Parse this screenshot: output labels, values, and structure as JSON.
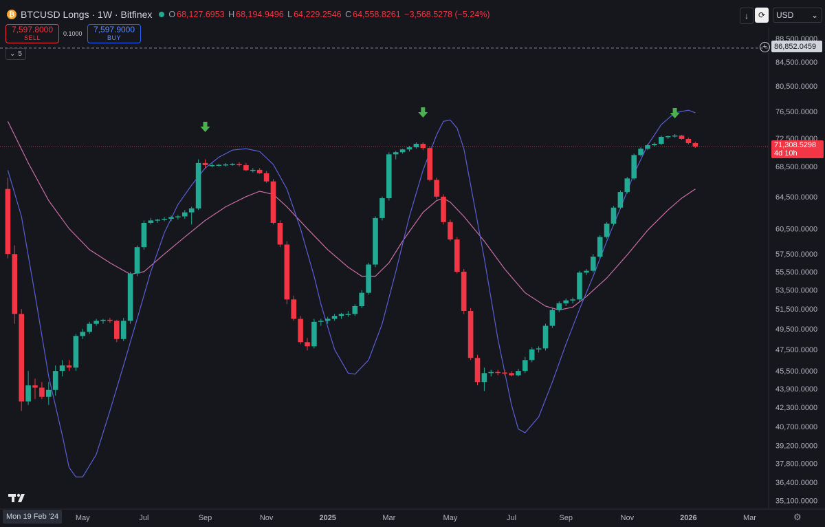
{
  "header": {
    "logo_symbol": "₿",
    "symbol_title": "BTCUSD Longs · 1W · Bitfinex",
    "status_icon": "market-status-dot",
    "open_label": "O",
    "open": "68,127.6953",
    "high_label": "H",
    "high": "68,194.9496",
    "low_label": "L",
    "low": "64,229.2546",
    "close_label": "C",
    "close": "64,558.8261",
    "change": "−3,568.5278 (−5.24%)"
  },
  "trade": {
    "sell_price": "7,597.8000",
    "sell_label": "SELL",
    "spread": "0.1000",
    "buy_price": "7,597.9000",
    "buy_label": "BUY"
  },
  "indicator_badge": {
    "count": "5",
    "icon": "chevron-down-icon"
  },
  "toolbar": {
    "download_icon": "arrow-down-icon",
    "sync_icon": "sync-icon",
    "currency": "USD",
    "currency_icon": "chevron-down-icon"
  },
  "price_tag": {
    "price": "71,308.5298",
    "countdown": "4d 10h"
  },
  "crosshair": {
    "price": "86,852.0459",
    "icon": "plus-icon"
  },
  "bottom": {
    "current_date": "Mon 19 Feb '24",
    "settings_icon": "gear-icon"
  },
  "colors": {
    "background": "#16171c",
    "up": "#22ab94",
    "down": "#f23645",
    "cycle_line": "#5b5fd6",
    "ma_line": "#c96fa8",
    "arrow": "#4caf50",
    "axis_text": "#b2b5be"
  },
  "chart_data": {
    "type": "candlestick",
    "title": "BTCUSD Longs · 1W · Bitfinex",
    "y_axis": {
      "scale": "log",
      "ticks": [
        "88,500.0000",
        "84,500.0000",
        "80,500.0000",
        "76,500.0000",
        "72,500.0000",
        "68,500.0000",
        "64,500.0000",
        "60,500.0000",
        "57,500.0000",
        "55,500.0000",
        "53,500.0000",
        "51,500.0000",
        "49,500.0000",
        "47,500.0000",
        "45,500.0000",
        "43,900.0000",
        "42,300.0000",
        "40,700.0000",
        "39,200.0000",
        "37,800.0000",
        "36,400.0000",
        "35,100.0000"
      ],
      "range": [
        34500,
        90500
      ]
    },
    "x_axis": {
      "ticks": [
        {
          "label": "May",
          "week": 11
        },
        {
          "label": "Jul",
          "week": 20
        },
        {
          "label": "Sep",
          "week": 29
        },
        {
          "label": "Nov",
          "week": 38
        },
        {
          "label": "2025",
          "week": 47,
          "bold": true
        },
        {
          "label": "Mar",
          "week": 56
        },
        {
          "label": "May",
          "week": 65
        },
        {
          "label": "Jul",
          "week": 74
        },
        {
          "label": "Sep",
          "week": 82
        },
        {
          "label": "Nov",
          "week": 91
        },
        {
          "label": "2026",
          "week": 100,
          "bold": true
        },
        {
          "label": "Mar",
          "week": 109
        }
      ]
    },
    "candles": [
      {
        "o": 65500,
        "h": 67000,
        "l": 57000,
        "c": 57500
      },
      {
        "o": 57500,
        "h": 58500,
        "l": 50000,
        "c": 51000
      },
      {
        "o": 51000,
        "h": 51500,
        "l": 42000,
        "c": 42800
      },
      {
        "o": 42800,
        "h": 45500,
        "l": 42500,
        "c": 44200
      },
      {
        "o": 44200,
        "h": 44800,
        "l": 43000,
        "c": 44000
      },
      {
        "o": 44000,
        "h": 44500,
        "l": 43000,
        "c": 43200
      },
      {
        "o": 43200,
        "h": 44500,
        "l": 42500,
        "c": 43800
      },
      {
        "o": 43800,
        "h": 46000,
        "l": 43300,
        "c": 45500
      },
      {
        "o": 45500,
        "h": 46500,
        "l": 45000,
        "c": 46000
      },
      {
        "o": 46000,
        "h": 46500,
        "l": 45500,
        "c": 45800
      },
      {
        "o": 45800,
        "h": 49000,
        "l": 45500,
        "c": 48800
      },
      {
        "o": 48800,
        "h": 49500,
        "l": 48500,
        "c": 49200
      },
      {
        "o": 49200,
        "h": 50200,
        "l": 49000,
        "c": 50000
      },
      {
        "o": 50000,
        "h": 50500,
        "l": 49800,
        "c": 50300
      },
      {
        "o": 50300,
        "h": 50500,
        "l": 50000,
        "c": 50400
      },
      {
        "o": 50400,
        "h": 50600,
        "l": 50100,
        "c": 50300
      },
      {
        "o": 50300,
        "h": 50400,
        "l": 48200,
        "c": 48500
      },
      {
        "o": 48500,
        "h": 50600,
        "l": 48300,
        "c": 50300
      },
      {
        "o": 50300,
        "h": 55500,
        "l": 50000,
        "c": 55300
      },
      {
        "o": 55300,
        "h": 58500,
        "l": 55000,
        "c": 58300
      },
      {
        "o": 58300,
        "h": 61500,
        "l": 58000,
        "c": 61200
      },
      {
        "o": 61200,
        "h": 61800,
        "l": 61000,
        "c": 61500
      },
      {
        "o": 61500,
        "h": 61700,
        "l": 61200,
        "c": 61600
      },
      {
        "o": 61600,
        "h": 61900,
        "l": 61400,
        "c": 61700
      },
      {
        "o": 61700,
        "h": 62100,
        "l": 61400,
        "c": 61900
      },
      {
        "o": 61900,
        "h": 62200,
        "l": 61600,
        "c": 62000
      },
      {
        "o": 62000,
        "h": 62800,
        "l": 61700,
        "c": 62500
      },
      {
        "o": 62500,
        "h": 63200,
        "l": 61000,
        "c": 63000
      },
      {
        "o": 63000,
        "h": 69500,
        "l": 62800,
        "c": 69000
      },
      {
        "o": 69000,
        "h": 69500,
        "l": 68300,
        "c": 68700
      },
      {
        "o": 68700,
        "h": 69000,
        "l": 68400,
        "c": 68700
      },
      {
        "o": 68700,
        "h": 68900,
        "l": 68500,
        "c": 68750
      },
      {
        "o": 68750,
        "h": 69000,
        "l": 68500,
        "c": 68800
      },
      {
        "o": 68800,
        "h": 69000,
        "l": 68600,
        "c": 68850
      },
      {
        "o": 68850,
        "h": 69100,
        "l": 68500,
        "c": 68700
      },
      {
        "o": 68700,
        "h": 69000,
        "l": 67900,
        "c": 68000
      },
      {
        "o": 68000,
        "h": 68300,
        "l": 67700,
        "c": 68050
      },
      {
        "o": 68050,
        "h": 68300,
        "l": 67500,
        "c": 67600
      },
      {
        "o": 67600,
        "h": 67900,
        "l": 66300,
        "c": 66500
      },
      {
        "o": 66500,
        "h": 66800,
        "l": 61000,
        "c": 61200
      },
      {
        "o": 61200,
        "h": 61500,
        "l": 58300,
        "c": 58600
      },
      {
        "o": 58600,
        "h": 59000,
        "l": 52000,
        "c": 52500
      },
      {
        "o": 52500,
        "h": 52900,
        "l": 50300,
        "c": 50500
      },
      {
        "o": 50500,
        "h": 50800,
        "l": 48000,
        "c": 48200
      },
      {
        "o": 48200,
        "h": 48600,
        "l": 47400,
        "c": 47800
      },
      {
        "o": 47800,
        "h": 50500,
        "l": 47600,
        "c": 50200
      },
      {
        "o": 50200,
        "h": 50500,
        "l": 49800,
        "c": 50300
      },
      {
        "o": 50300,
        "h": 50700,
        "l": 50000,
        "c": 50500
      },
      {
        "o": 50500,
        "h": 51000,
        "l": 50300,
        "c": 50800
      },
      {
        "o": 50800,
        "h": 51100,
        "l": 50500,
        "c": 51000
      },
      {
        "o": 51000,
        "h": 51300,
        "l": 50700,
        "c": 51000
      },
      {
        "o": 51000,
        "h": 52000,
        "l": 50800,
        "c": 51800
      },
      {
        "o": 51800,
        "h": 53500,
        "l": 51600,
        "c": 53200
      },
      {
        "o": 53200,
        "h": 56500,
        "l": 53000,
        "c": 56300
      },
      {
        "o": 56300,
        "h": 62000,
        "l": 56000,
        "c": 61800
      },
      {
        "o": 61800,
        "h": 64500,
        "l": 61500,
        "c": 64300
      },
      {
        "o": 64300,
        "h": 70500,
        "l": 64000,
        "c": 70200
      },
      {
        "o": 70200,
        "h": 70700,
        "l": 69500,
        "c": 70500
      },
      {
        "o": 70500,
        "h": 71000,
        "l": 70300,
        "c": 70900
      },
      {
        "o": 70900,
        "h": 71400,
        "l": 70600,
        "c": 71200
      },
      {
        "o": 71200,
        "h": 71900,
        "l": 71000,
        "c": 71700
      },
      {
        "o": 71700,
        "h": 71900,
        "l": 70800,
        "c": 71100
      },
      {
        "o": 71100,
        "h": 71300,
        "l": 66500,
        "c": 66700
      },
      {
        "o": 66700,
        "h": 67000,
        "l": 64200,
        "c": 64500
      },
      {
        "o": 64500,
        "h": 64800,
        "l": 61000,
        "c": 61300
      },
      {
        "o": 61300,
        "h": 61600,
        "l": 59000,
        "c": 59200
      },
      {
        "o": 59200,
        "h": 59500,
        "l": 55300,
        "c": 55500
      },
      {
        "o": 55500,
        "h": 55800,
        "l": 51000,
        "c": 51300
      },
      {
        "o": 51300,
        "h": 51600,
        "l": 46500,
        "c": 46700
      },
      {
        "o": 46700,
        "h": 47000,
        "l": 44200,
        "c": 44500
      },
      {
        "o": 44500,
        "h": 45800,
        "l": 43700,
        "c": 45300
      },
      {
        "o": 45300,
        "h": 45600,
        "l": 45000,
        "c": 45400
      },
      {
        "o": 45400,
        "h": 45600,
        "l": 45100,
        "c": 45350
      },
      {
        "o": 45350,
        "h": 45600,
        "l": 45100,
        "c": 45300
      },
      {
        "o": 45300,
        "h": 45500,
        "l": 45000,
        "c": 45100
      },
      {
        "o": 45100,
        "h": 45700,
        "l": 45000,
        "c": 45500
      },
      {
        "o": 45500,
        "h": 46800,
        "l": 45300,
        "c": 46500
      },
      {
        "o": 46500,
        "h": 47700,
        "l": 46300,
        "c": 47500
      },
      {
        "o": 47500,
        "h": 47800,
        "l": 47200,
        "c": 47600
      },
      {
        "o": 47600,
        "h": 50000,
        "l": 47400,
        "c": 49800
      },
      {
        "o": 49800,
        "h": 51600,
        "l": 49600,
        "c": 51400
      },
      {
        "o": 51400,
        "h": 52300,
        "l": 51200,
        "c": 52100
      },
      {
        "o": 52100,
        "h": 52600,
        "l": 51800,
        "c": 52400
      },
      {
        "o": 52400,
        "h": 52700,
        "l": 52100,
        "c": 52500
      },
      {
        "o": 52500,
        "h": 55600,
        "l": 52300,
        "c": 55400
      },
      {
        "o": 55400,
        "h": 55800,
        "l": 55100,
        "c": 55600
      },
      {
        "o": 55600,
        "h": 57500,
        "l": 55400,
        "c": 57200
      },
      {
        "o": 57200,
        "h": 59700,
        "l": 57000,
        "c": 59500
      },
      {
        "o": 59500,
        "h": 61300,
        "l": 59300,
        "c": 61100
      },
      {
        "o": 61100,
        "h": 63300,
        "l": 60900,
        "c": 63100
      },
      {
        "o": 63100,
        "h": 65300,
        "l": 62900,
        "c": 65100
      },
      {
        "o": 65100,
        "h": 67100,
        "l": 64900,
        "c": 66900
      },
      {
        "o": 66900,
        "h": 70300,
        "l": 66700,
        "c": 70100
      },
      {
        "o": 70100,
        "h": 71200,
        "l": 69900,
        "c": 71000
      },
      {
        "o": 71000,
        "h": 71700,
        "l": 70800,
        "c": 71500
      },
      {
        "o": 71500,
        "h": 71900,
        "l": 71300,
        "c": 71700
      },
      {
        "o": 71700,
        "h": 72900,
        "l": 71500,
        "c": 72700
      },
      {
        "o": 72700,
        "h": 72900,
        "l": 72400,
        "c": 72800
      },
      {
        "o": 72800,
        "h": 73100,
        "l": 72600,
        "c": 72900
      },
      {
        "o": 72900,
        "h": 73000,
        "l": 72300,
        "c": 72400
      },
      {
        "o": 72400,
        "h": 72600,
        "l": 71600,
        "c": 71800
      },
      {
        "o": 71800,
        "h": 72000,
        "l": 71100,
        "c": 71300
      }
    ],
    "cycle_line": [
      [
        0,
        68000
      ],
      [
        2,
        62000
      ],
      [
        4,
        53000
      ],
      [
        6,
        45000
      ],
      [
        8,
        40000
      ],
      [
        9,
        37500
      ],
      [
        10,
        36800
      ],
      [
        11,
        36800
      ],
      [
        13,
        38500
      ],
      [
        15,
        42000
      ],
      [
        17,
        46000
      ],
      [
        19,
        50500
      ],
      [
        21,
        55500
      ],
      [
        23,
        60000
      ],
      [
        25,
        63500
      ],
      [
        27,
        66000
      ],
      [
        29,
        68300
      ],
      [
        31,
        69800
      ],
      [
        33,
        70800
      ],
      [
        35,
        71000
      ],
      [
        37,
        70600
      ],
      [
        39,
        68800
      ],
      [
        41,
        65500
      ],
      [
        43,
        60500
      ],
      [
        45,
        55000
      ],
      [
        46,
        52000
      ],
      [
        48,
        47500
      ],
      [
        50,
        45300
      ],
      [
        51,
        45200
      ],
      [
        53,
        46500
      ],
      [
        55,
        50000
      ],
      [
        57,
        55500
      ],
      [
        59,
        62000
      ],
      [
        61,
        68000
      ],
      [
        63,
        73000
      ],
      [
        64,
        75000
      ],
      [
        65,
        75200
      ],
      [
        66,
        74000
      ],
      [
        67,
        71000
      ],
      [
        68,
        66000
      ],
      [
        70,
        57000
      ],
      [
        72,
        48500
      ],
      [
        74,
        42500
      ],
      [
        75,
        40500
      ],
      [
        76,
        40200
      ],
      [
        78,
        41500
      ],
      [
        80,
        44500
      ],
      [
        82,
        48000
      ],
      [
        84,
        51500
      ],
      [
        86,
        55000
      ],
      [
        88,
        59000
      ],
      [
        90,
        63000
      ],
      [
        92,
        67500
      ],
      [
        94,
        71500
      ],
      [
        96,
        74500
      ],
      [
        98,
        76300
      ],
      [
        100,
        76700
      ],
      [
        101,
        76300
      ]
    ],
    "ma_line": [
      [
        0,
        75000
      ],
      [
        3,
        69000
      ],
      [
        6,
        64000
      ],
      [
        9,
        60500
      ],
      [
        12,
        58000
      ],
      [
        15,
        56500
      ],
      [
        18,
        55200
      ],
      [
        20,
        55500
      ],
      [
        23,
        57500
      ],
      [
        26,
        59500
      ],
      [
        29,
        61500
      ],
      [
        32,
        63200
      ],
      [
        35,
        64500
      ],
      [
        37,
        65200
      ],
      [
        39,
        64800
      ],
      [
        41,
        63200
      ],
      [
        44,
        60500
      ],
      [
        47,
        58000
      ],
      [
        50,
        56000
      ],
      [
        52,
        55000
      ],
      [
        54,
        55000
      ],
      [
        56,
        56500
      ],
      [
        58,
        59000
      ],
      [
        61,
        62500
      ],
      [
        63,
        64000
      ],
      [
        64,
        64300
      ],
      [
        65,
        63800
      ],
      [
        67,
        62000
      ],
      [
        70,
        59000
      ],
      [
        73,
        55800
      ],
      [
        76,
        53200
      ],
      [
        79,
        51800
      ],
      [
        81,
        51400
      ],
      [
        83,
        51700
      ],
      [
        85,
        52800
      ],
      [
        88,
        54800
      ],
      [
        91,
        57400
      ],
      [
        94,
        60300
      ],
      [
        97,
        62800
      ],
      [
        99,
        64300
      ],
      [
        101,
        65500
      ]
    ],
    "signal_arrows": [
      29,
      61,
      98
    ],
    "last_price": 71308.5298,
    "reference_level": 86852.0459
  }
}
